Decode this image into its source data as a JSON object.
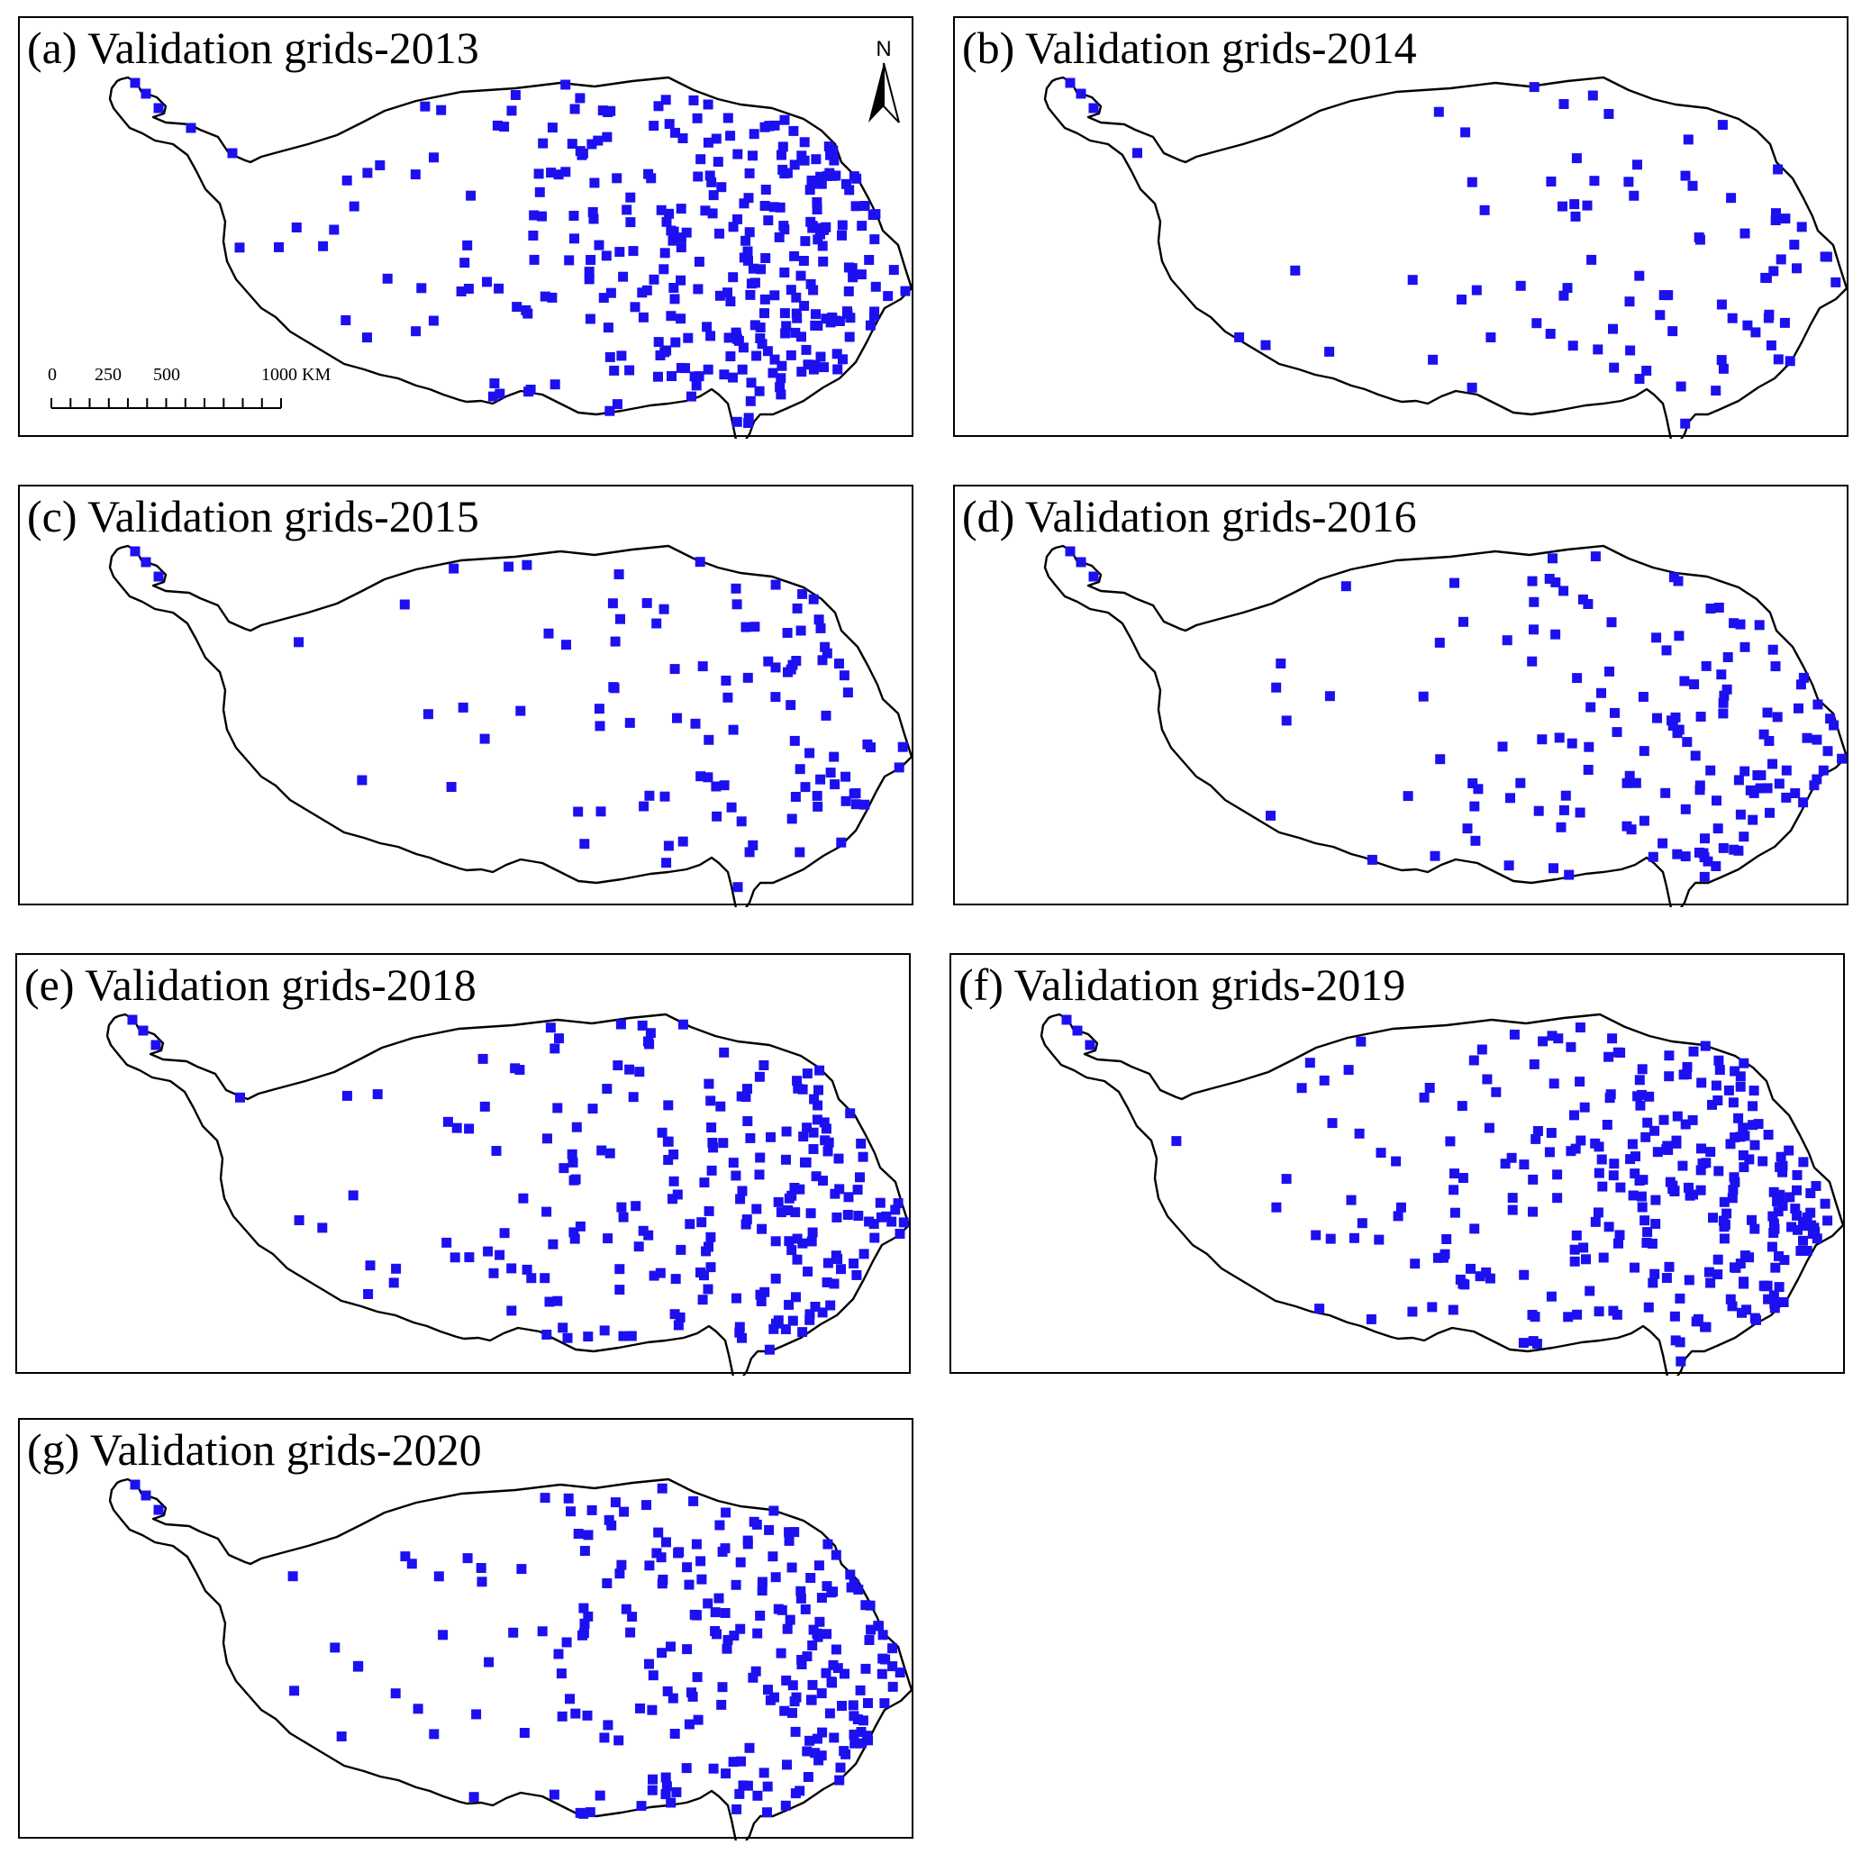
{
  "panels": [
    {
      "id": "a",
      "title": "(a) Validation grids-2013",
      "count": 330
    },
    {
      "id": "b",
      "title": "(b) Validation grids-2014",
      "count": 85
    },
    {
      "id": "c",
      "title": "(c) Validation grids-2015",
      "count": 105
    },
    {
      "id": "d",
      "title": "(d) Validation grids-2016",
      "count": 150
    },
    {
      "id": "e",
      "title": "(e) Validation grids-2018",
      "count": 230
    },
    {
      "id": "f",
      "title": "(f) Validation grids-2019",
      "count": 300
    },
    {
      "id": "g",
      "title": "(g) Validation grids-2020",
      "count": 250
    }
  ],
  "north_arrow": {
    "label": "N"
  },
  "scale_bar": {
    "labels": [
      "0",
      "250",
      "500",
      "1000 KM"
    ],
    "unit": "KM"
  },
  "colors": {
    "points": "#1c10f0",
    "outline": "#000000",
    "frame": "#000000"
  },
  "icons": {
    "north_arrow": "north-arrow-icon"
  }
}
